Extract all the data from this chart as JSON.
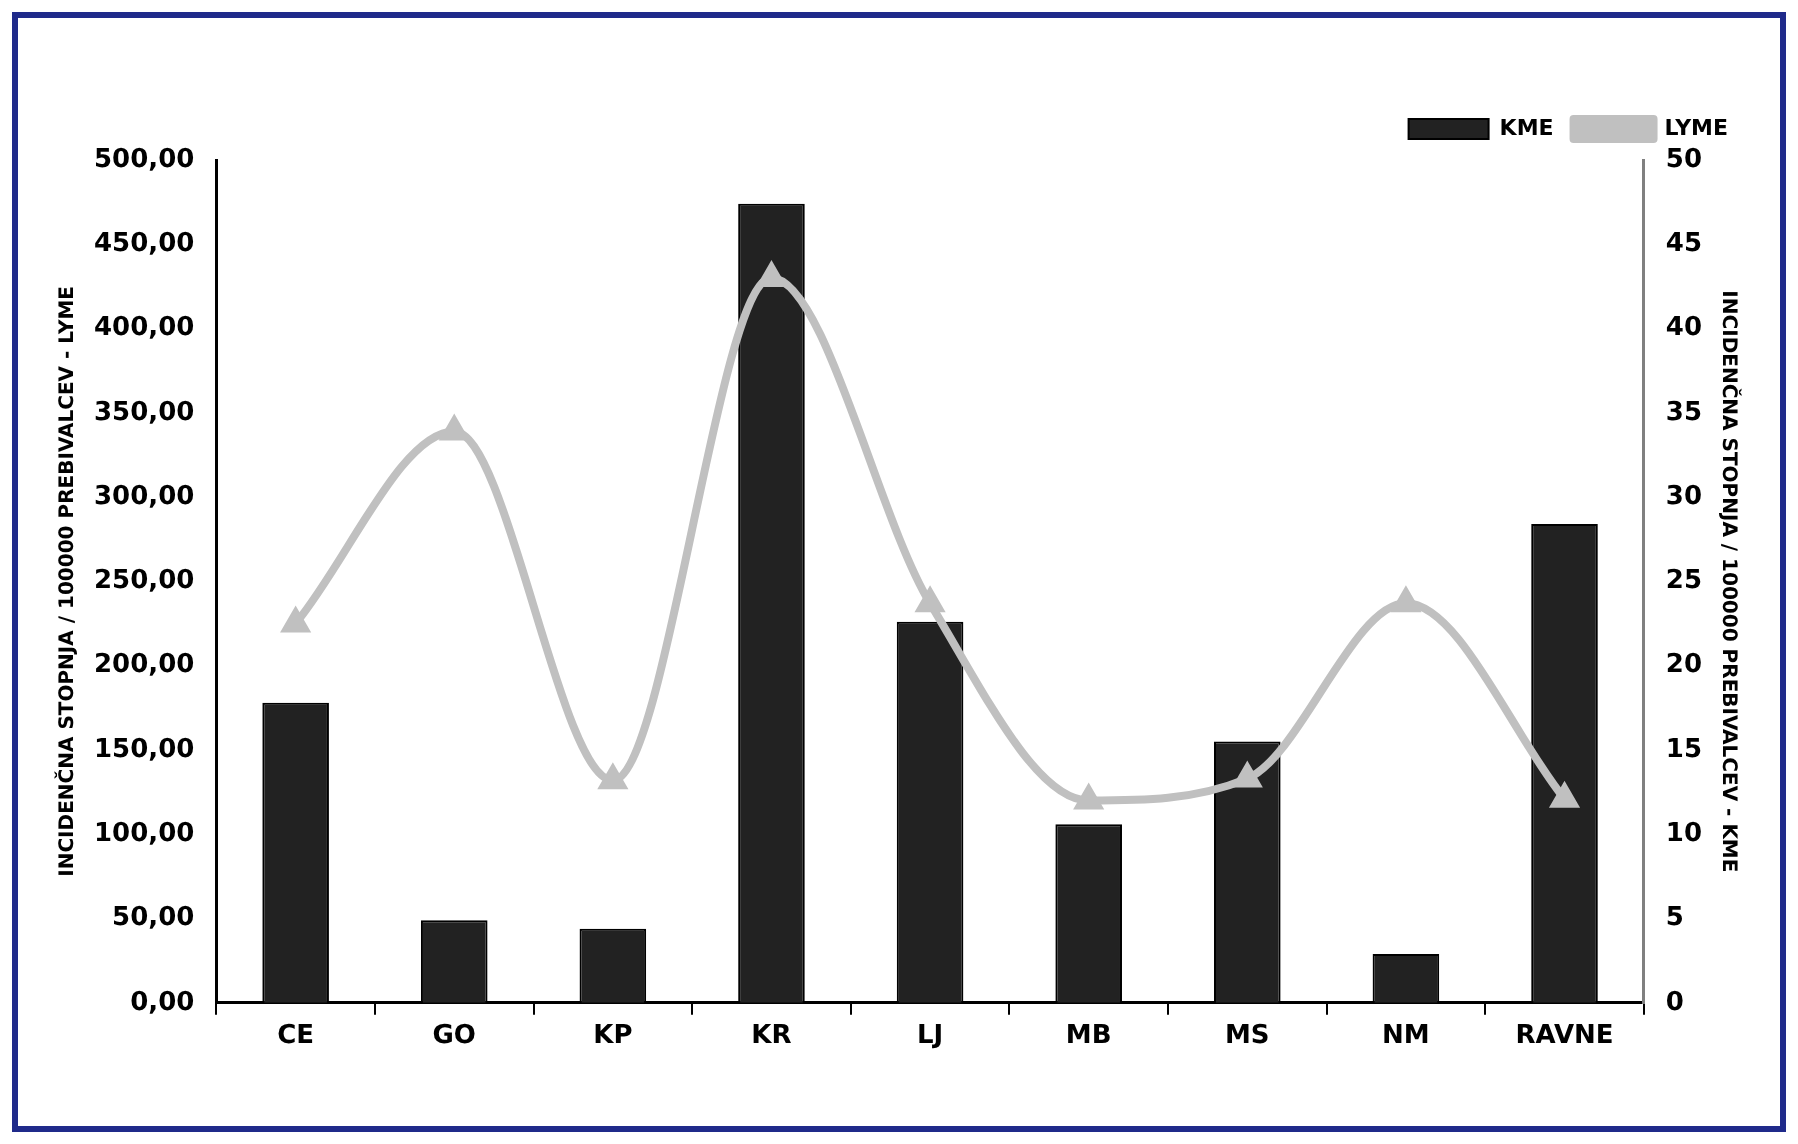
{
  "chart_data": {
    "type": "bar",
    "categories": [
      "CE",
      "GO",
      "KP",
      "KR",
      "LJ",
      "MB",
      "MS",
      "NM",
      "RAVNE"
    ],
    "series": [
      {
        "name": "KME",
        "axis": "y2",
        "color": "#222222",
        "values": [
          17.8,
          4.9,
          4.4,
          47.4,
          22.6,
          10.6,
          15.5,
          2.9,
          28.4
        ]
      },
      {
        "name": "LYME",
        "type": "line",
        "axis": "y",
        "color": "#c0c0c0",
        "marker": "triangle",
        "values": [
          225,
          339,
          132,
          430,
          237,
          120,
          133,
          237,
          121
        ]
      }
    ],
    "ylabel": "INCIDENČNA STOPNJA / 100000 PREBIVALCEV - LYME",
    "y2label": "INCIDENČNA STOPNJA / 100000 PREBIVALCEV - KME",
    "ylim": [
      0,
      500
    ],
    "yticks": [
      {
        "value": 0,
        "label": "0,00"
      },
      {
        "value": 50,
        "label": "50,00"
      },
      {
        "value": 100,
        "label": "100,00"
      },
      {
        "value": 150,
        "label": "150,00"
      },
      {
        "value": 200,
        "label": "200,00"
      },
      {
        "value": 250,
        "label": "250,00"
      },
      {
        "value": 300,
        "label": "300,00"
      },
      {
        "value": 350,
        "label": "350,00"
      },
      {
        "value": 400,
        "label": "400,00"
      },
      {
        "value": 450,
        "label": "450,00"
      },
      {
        "value": 500,
        "label": "500,00"
      }
    ],
    "y2lim": [
      0,
      50
    ],
    "y2ticks": [
      0,
      5,
      10,
      15,
      20,
      25,
      30,
      35,
      40,
      45,
      50
    ],
    "grid": false,
    "legend": "top right"
  }
}
